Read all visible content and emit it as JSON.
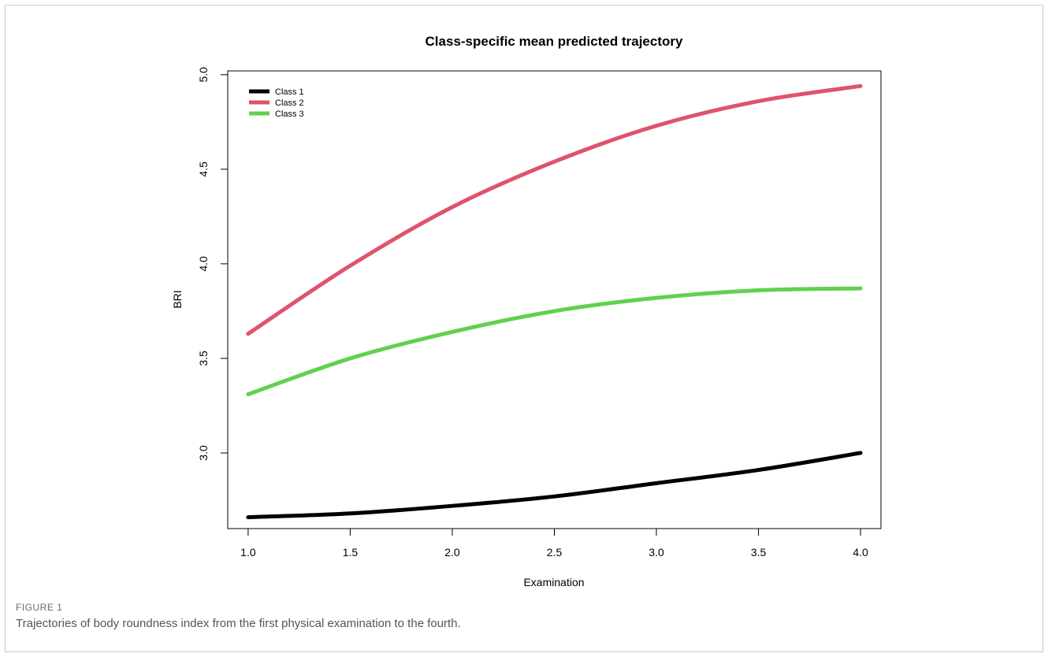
{
  "chart_data": {
    "type": "line",
    "title": "Class-specific mean predicted trajectory",
    "xlabel": "Examination",
    "ylabel": "BRI",
    "xlim": [
      0.9,
      4.1
    ],
    "ylim": [
      2.6,
      5.02
    ],
    "xticks": [
      "1.0",
      "1.5",
      "2.0",
      "2.5",
      "3.0",
      "3.5",
      "4.0"
    ],
    "yticks": [
      "3.0",
      "3.5",
      "4.0",
      "4.5",
      "5.0"
    ],
    "grid": false,
    "legend": "top-left",
    "series": [
      {
        "name": "Class 1",
        "color": "#000000",
        "x": [
          1.0,
          1.5,
          2.0,
          2.5,
          3.0,
          3.5,
          4.0
        ],
        "y": [
          2.66,
          2.68,
          2.72,
          2.77,
          2.84,
          2.91,
          3.0
        ]
      },
      {
        "name": "Class 2",
        "color": "#df536b",
        "x": [
          1.0,
          1.5,
          2.0,
          2.5,
          3.0,
          3.5,
          4.0
        ],
        "y": [
          3.63,
          3.99,
          4.3,
          4.54,
          4.73,
          4.86,
          4.94
        ]
      },
      {
        "name": "Class 3",
        "color": "#61d04f",
        "x": [
          1.0,
          1.5,
          2.0,
          2.5,
          3.0,
          3.5,
          4.0
        ],
        "y": [
          3.31,
          3.5,
          3.64,
          3.75,
          3.82,
          3.86,
          3.87
        ]
      }
    ]
  },
  "figure": {
    "label": "FIGURE 1",
    "caption": "Trajectories of body roundness index from the first physical examination to the fourth."
  }
}
